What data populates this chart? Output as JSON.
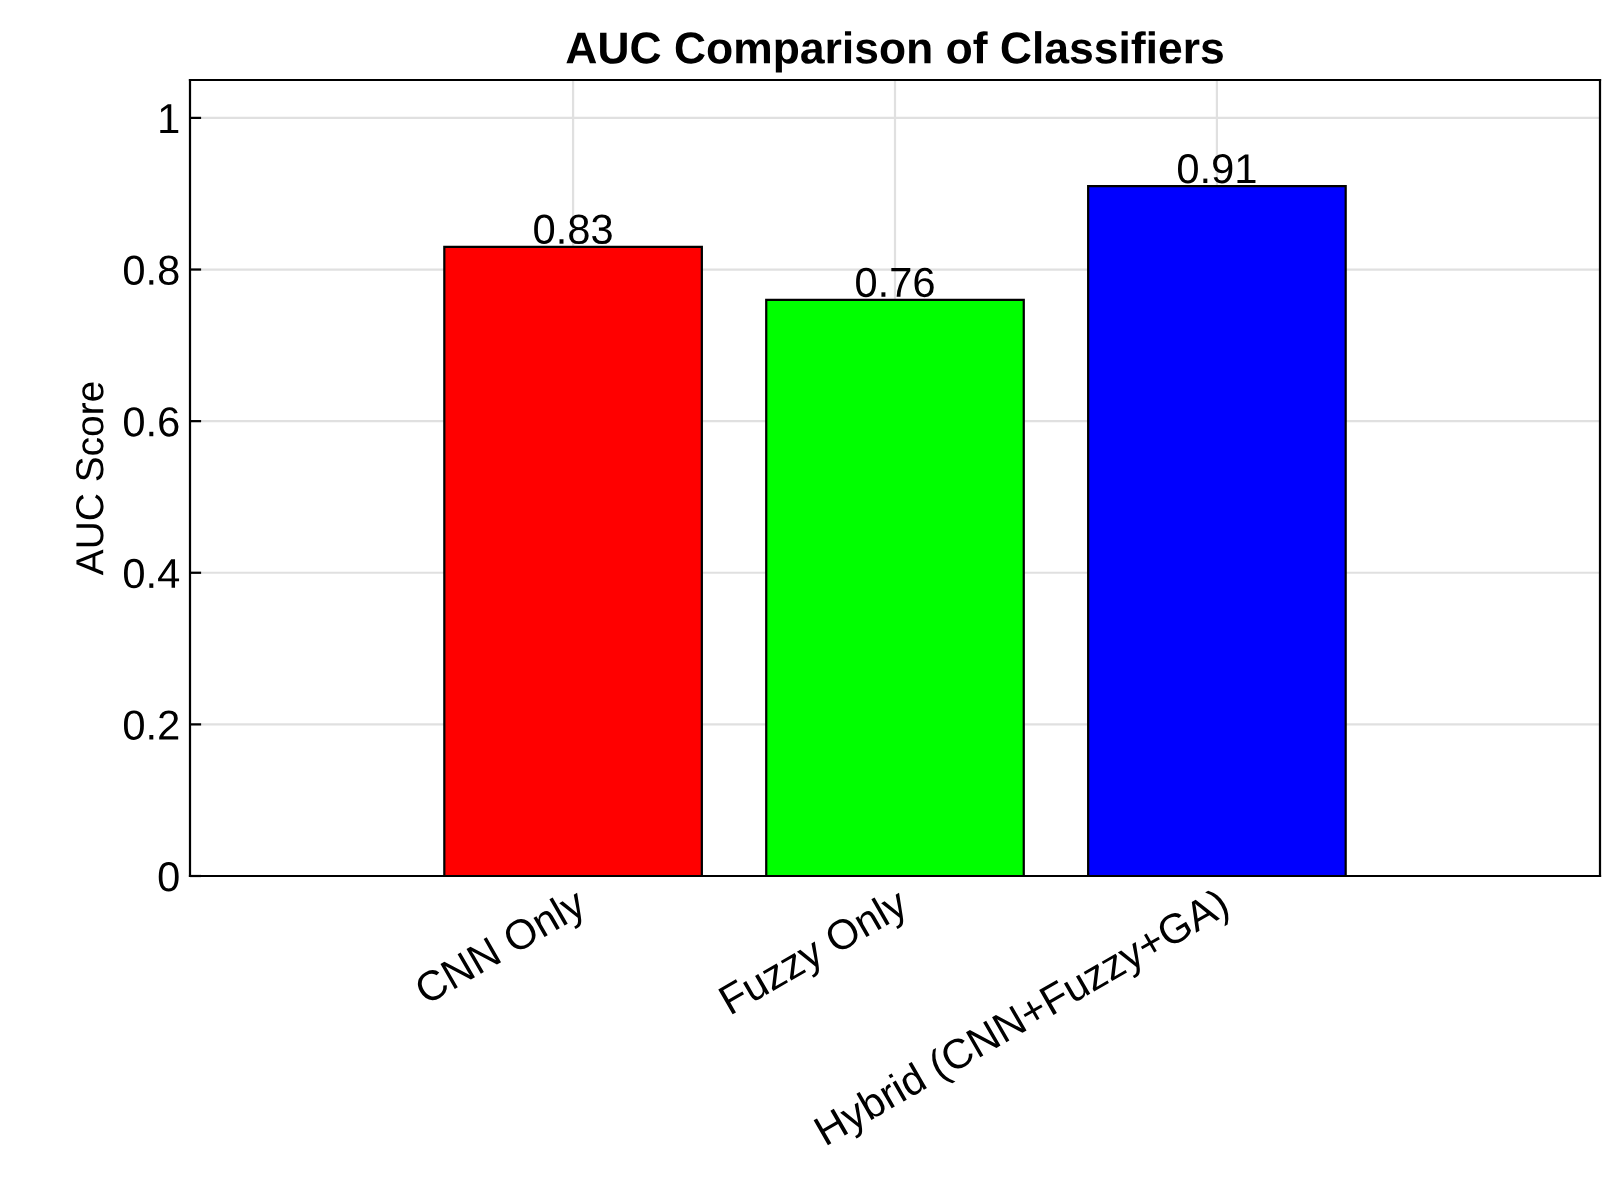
{
  "chart_data": {
    "type": "bar",
    "title": "AUC Comparison of Classifiers",
    "ylabel": "AUC Score",
    "categories": [
      "CNN Only",
      "Fuzzy Only",
      "Hybrid (CNN+Fuzzy+GA)"
    ],
    "values": [
      0.83,
      0.76,
      0.91
    ],
    "colors": [
      "#ff0000",
      "#00ff00",
      "#0000ff"
    ],
    "ylim": [
      0,
      1.05
    ],
    "yticks": [
      0,
      0.2,
      0.4,
      0.6,
      0.8,
      1
    ],
    "grid": true,
    "data_labels": true
  }
}
